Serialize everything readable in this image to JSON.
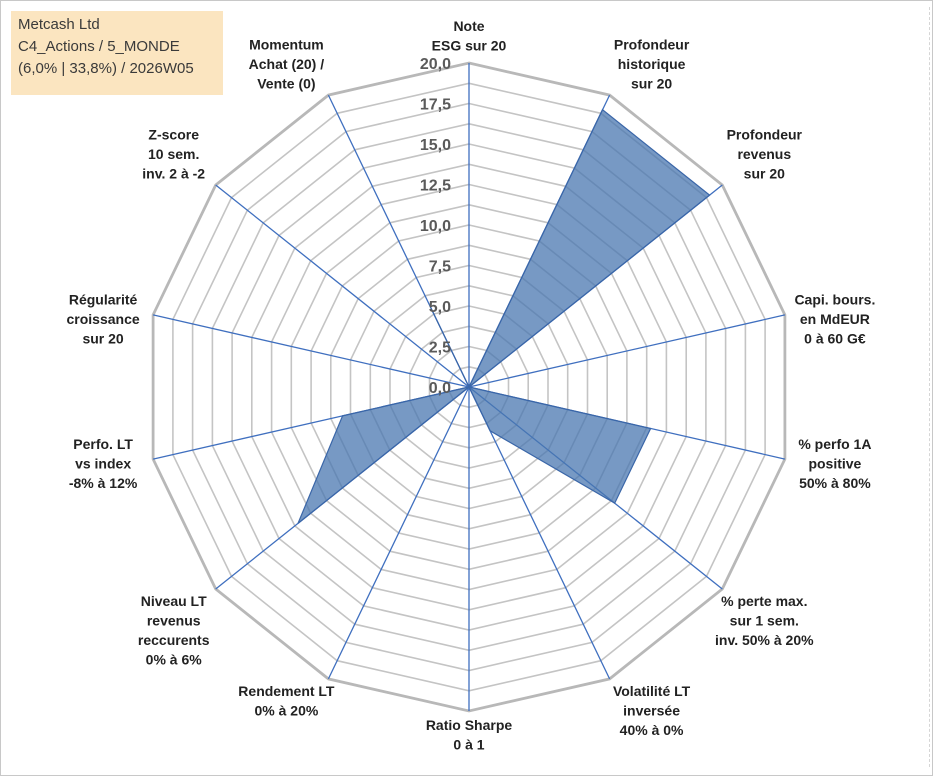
{
  "header": {
    "lines": [
      "Metcash Ltd",
      "C4_Actions / 5_MONDE",
      "(6,0% | 33,8%) / 2026W05"
    ],
    "background": "#fbe5c0"
  },
  "chart_data": {
    "type": "radar",
    "title": "",
    "rlim": [
      0,
      20
    ],
    "tick_values": [
      0,
      2.5,
      5,
      7.5,
      10,
      12.5,
      15,
      17.5,
      20
    ],
    "tick_labels": [
      "0,0",
      "2,5",
      "5,0",
      "7,5",
      "10,0",
      "12,5",
      "15,0",
      "17,5",
      "20,0"
    ],
    "categories": [
      [
        "Note",
        "ESG sur 20"
      ],
      [
        "Profondeur",
        "historique",
        "sur 20"
      ],
      [
        "Profondeur",
        "revenus",
        "sur 20"
      ],
      [
        "Capi. bours.",
        "en MdEUR",
        "0 à 60 G€"
      ],
      [
        "% perfo 1A",
        "positive",
        "50% à 80%"
      ],
      [
        "% perte max.",
        "sur 1 sem.",
        "inv. 50% à 20%"
      ],
      [
        "Volatilité LT",
        "inversée",
        "40% à 0%"
      ],
      [
        "Ratio Sharpe",
        "0 à 1"
      ],
      [
        "Rendement LT",
        "0% à 20%"
      ],
      [
        "Niveau LT",
        "revenus",
        "reccurents",
        "0% à 6%"
      ],
      [
        "Perfo. LT",
        "vs index",
        "-8% à 12%"
      ],
      [
        "Régularité",
        "croissance",
        "sur 20"
      ],
      [
        "Z-score",
        "10 sem.",
        "inv. 2 à -2"
      ],
      [
        "Momentum",
        "Achat (20) /",
        "Vente (0)"
      ]
    ],
    "series": [
      {
        "values": [
          0,
          19,
          19,
          0,
          11.5,
          11.5,
          3,
          0,
          0,
          13.5,
          8,
          0,
          0,
          5.5
        ]
      }
    ],
    "grid": true,
    "colors": {
      "series_fill": "#4a77b0",
      "spoke": "#3f6fbf",
      "ring": "#c4c4c4"
    }
  }
}
